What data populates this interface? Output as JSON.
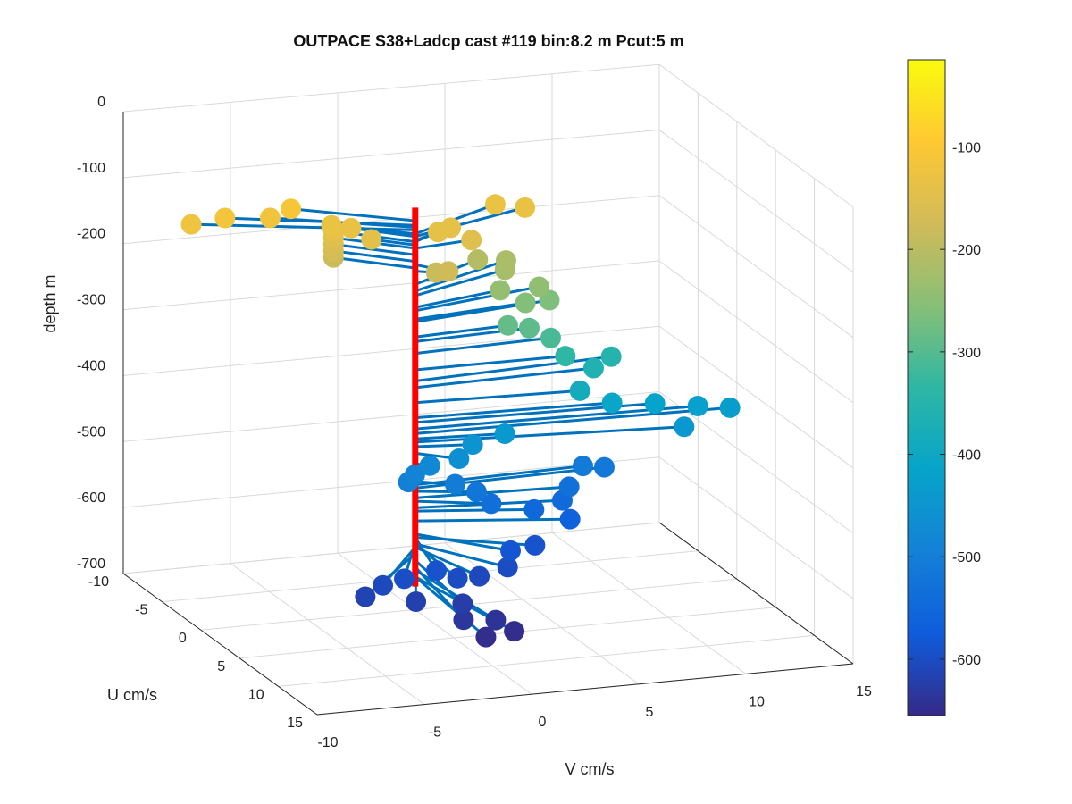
{
  "chart_data": {
    "type": "scatter",
    "subtype": "3d-quiver-stem",
    "title": "OUTPACE S38+Ladcp cast #119 bin:8.2 m  Pcut:5 m",
    "xlabel": "V cm/s",
    "ylabel": "U cm/s",
    "zlabel": "depth m",
    "xlim": [
      -10,
      15
    ],
    "ylim": [
      -10,
      15
    ],
    "zlim": [
      -700,
      0
    ],
    "xticks": [
      "-10",
      "-5",
      "0",
      "5",
      "10",
      "15"
    ],
    "yticks": [
      "-10",
      "-5",
      "0",
      "5",
      "10",
      "15"
    ],
    "zticks": [
      "0",
      "-100",
      "-200",
      "-300",
      "-400",
      "-500",
      "-600",
      "-700"
    ],
    "grid": true,
    "stem_color": "#ff0000",
    "vector_color": "#0072bd",
    "colormap": "parula",
    "colorbar": {
      "ticks": [
        "-100",
        "-200",
        "-300",
        "-400",
        "-500",
        "-600"
      ],
      "range": [
        -655,
        -15
      ]
    },
    "points": [
      {
        "v": -9.0,
        "u": -4.0,
        "depth": -122
      },
      {
        "v": -7.5,
        "u": -3.8,
        "depth": -115
      },
      {
        "v": -5.5,
        "u": -3.5,
        "depth": -118
      },
      {
        "v": -4.5,
        "u": -3.6,
        "depth": -108
      },
      {
        "v": -3.0,
        "u": -2.5,
        "depth": -128
      },
      {
        "v": -2.2,
        "u": -2.2,
        "depth": -132
      },
      {
        "v": -1.5,
        "u": -1.5,
        "depth": -145
      },
      {
        "v": -2.8,
        "u": -2.8,
        "depth": -140
      },
      {
        "v": -2.8,
        "u": -2.8,
        "depth": -150
      },
      {
        "v": -2.8,
        "u": -2.8,
        "depth": -160
      },
      {
        "v": -2.8,
        "u": -2.8,
        "depth": -170
      },
      {
        "v": -2.8,
        "u": -2.8,
        "depth": -180
      },
      {
        "v": 0.8,
        "u": 0.5,
        "depth": -185
      },
      {
        "v": 1.0,
        "u": 1.5,
        "depth": -175
      },
      {
        "v": 1.5,
        "u": -1.2,
        "depth": -140
      },
      {
        "v": 2.2,
        "u": -1.5,
        "depth": -138
      },
      {
        "v": 2.8,
        "u": -0.5,
        "depth": -150
      },
      {
        "v": 5.0,
        "u": -3.5,
        "depth": -128
      },
      {
        "v": 6.2,
        "u": -3.0,
        "depth": -132
      },
      {
        "v": 4.0,
        "u": -3.0,
        "depth": -205
      },
      {
        "v": 5.5,
        "u": -3.5,
        "depth": -215
      },
      {
        "v": 5.2,
        "u": -2.8,
        "depth": -222
      },
      {
        "v": 6.5,
        "u": -2.0,
        "depth": -245
      },
      {
        "v": 6.8,
        "u": -1.5,
        "depth": -262
      },
      {
        "v": 4.5,
        "u": -1.5,
        "depth": -240
      },
      {
        "v": 5.5,
        "u": -1.0,
        "depth": -258
      },
      {
        "v": 4.5,
        "u": -0.5,
        "depth": -285
      },
      {
        "v": 5.5,
        "u": -0.5,
        "depth": -292
      },
      {
        "v": 6.5,
        "u": -0.5,
        "depth": -310
      },
      {
        "v": 7.0,
        "u": 0.0,
        "depth": -335
      },
      {
        "v": 9.5,
        "u": -1.0,
        "depth": -352
      },
      {
        "v": 8.5,
        "u": -0.5,
        "depth": -362
      },
      {
        "v": 7.5,
        "u": 0.5,
        "depth": -385
      },
      {
        "v": 9.0,
        "u": 0.5,
        "depth": -408
      },
      {
        "v": 11.0,
        "u": 0.5,
        "depth": -415
      },
      {
        "v": 13.0,
        "u": 0.5,
        "depth": -425
      },
      {
        "v": 14.5,
        "u": 0.5,
        "depth": -432
      },
      {
        "v": 12.0,
        "u": 1.5,
        "depth": -445
      },
      {
        "v": 4.0,
        "u": 0.5,
        "depth": -440
      },
      {
        "v": 2.5,
        "u": 0.5,
        "depth": -452
      },
      {
        "v": 1.5,
        "u": 1.5,
        "depth": -462
      },
      {
        "v": 0.5,
        "u": 0.5,
        "depth": -478
      },
      {
        "v": -0.2,
        "u": 0.5,
        "depth": -490
      },
      {
        "v": -0.5,
        "u": 0.5,
        "depth": -500
      },
      {
        "v": 1.5,
        "u": 1.0,
        "depth": -505
      },
      {
        "v": 2.5,
        "u": 1.0,
        "depth": -520
      },
      {
        "v": 3.0,
        "u": 1.5,
        "depth": -535
      },
      {
        "v": 8.0,
        "u": -0.5,
        "depth": -510
      },
      {
        "v": 9.0,
        "u": -0.5,
        "depth": -515
      },
      {
        "v": 7.0,
        "u": 0.5,
        "depth": -530
      },
      {
        "v": 6.5,
        "u": 1.0,
        "depth": -545
      },
      {
        "v": 5.0,
        "u": 1.5,
        "depth": -550
      },
      {
        "v": 6.5,
        "u": 2.0,
        "depth": -565
      },
      {
        "v": 4.5,
        "u": 3.0,
        "depth": -590
      },
      {
        "v": 3.0,
        "u": 4.0,
        "depth": -585
      },
      {
        "v": 2.5,
        "u": 5.0,
        "depth": -600
      },
      {
        "v": 1.0,
        "u": 5.5,
        "depth": -605
      },
      {
        "v": -0.2,
        "u": 6.0,
        "depth": -600
      },
      {
        "v": -1.0,
        "u": 5.5,
        "depth": -590
      },
      {
        "v": -2.5,
        "u": 5.5,
        "depth": -598
      },
      {
        "v": -3.5,
        "u": 5.5,
        "depth": -605
      },
      {
        "v": -4.5,
        "u": 6.0,
        "depth": -615
      },
      {
        "v": -2.5,
        "u": 7.0,
        "depth": -620
      },
      {
        "v": -0.5,
        "u": 7.5,
        "depth": -625
      },
      {
        "v": -1.0,
        "u": 9.0,
        "depth": -635
      },
      {
        "v": 0.5,
        "u": 9.0,
        "depth": -640
      },
      {
        "v": 1.0,
        "u": 10.0,
        "depth": -650
      },
      {
        "v": -0.5,
        "u": 10.5,
        "depth": -650
      }
    ]
  }
}
